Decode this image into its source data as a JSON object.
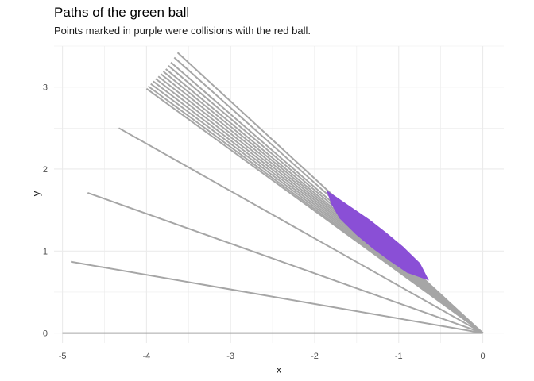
{
  "chart_data": {
    "type": "line",
    "title": "Paths of the green ball",
    "subtitle": "Points marked in purple were collisions with the red ball.",
    "xlabel": "x",
    "ylabel": "y",
    "xlim": [
      -5.1,
      0.25
    ],
    "ylim": [
      -0.12,
      3.5
    ],
    "x_ticks": [
      -5,
      -4,
      -3,
      -2,
      -1,
      0
    ],
    "y_ticks": [
      0,
      1,
      2,
      3
    ],
    "grid": true,
    "legend": "none",
    "colors": {
      "path": "#a6a6a6",
      "collision": "#8a4fd6",
      "grid": "#ebebeb"
    },
    "paths": [
      {
        "x": [
          0,
          -5.0
        ],
        "y": [
          0,
          0
        ]
      },
      {
        "x": [
          0,
          -4.9
        ],
        "y": [
          0,
          0.87
        ]
      },
      {
        "x": [
          0,
          -4.7
        ],
        "y": [
          0,
          1.71
        ]
      },
      {
        "x": [
          0,
          -4.33
        ],
        "y": [
          0,
          2.5
        ]
      },
      {
        "x": [
          0,
          -4.0
        ],
        "y": [
          0,
          2.98
        ]
      },
      {
        "x": [
          0,
          -3.98
        ],
        "y": [
          0,
          3.01
        ]
      },
      {
        "x": [
          0,
          -3.95
        ],
        "y": [
          0,
          3.04
        ]
      },
      {
        "x": [
          0,
          -3.92
        ],
        "y": [
          0,
          3.07
        ]
      },
      {
        "x": [
          0,
          -3.89
        ],
        "y": [
          0,
          3.1
        ]
      },
      {
        "x": [
          0,
          -3.86
        ],
        "y": [
          0,
          3.13
        ]
      },
      {
        "x": [
          0,
          -3.83
        ],
        "y": [
          0,
          3.16
        ]
      },
      {
        "x": [
          0,
          -3.8
        ],
        "y": [
          0,
          3.19
        ]
      },
      {
        "x": [
          0,
          -3.77
        ],
        "y": [
          0,
          3.22
        ]
      },
      {
        "x": [
          0,
          -3.74
        ],
        "y": [
          0,
          3.26
        ]
      },
      {
        "x": [
          0,
          -3.71
        ],
        "y": [
          0,
          3.3
        ]
      },
      {
        "x": [
          0,
          -3.67
        ],
        "y": [
          0,
          3.36
        ]
      },
      {
        "x": [
          0,
          -3.63
        ],
        "y": [
          0,
          3.42
        ]
      }
    ],
    "collision_region": {
      "x": [
        -1.85,
        -1.75,
        -1.55,
        -1.35,
        -1.15,
        -0.95,
        -0.75,
        -0.65,
        -0.9,
        -1.1,
        -1.3,
        -1.5,
        -1.7,
        -1.8
      ],
      "y": [
        1.73,
        1.66,
        1.52,
        1.38,
        1.22,
        1.05,
        0.85,
        0.65,
        0.74,
        0.88,
        1.03,
        1.2,
        1.4,
        1.58
      ]
    }
  }
}
